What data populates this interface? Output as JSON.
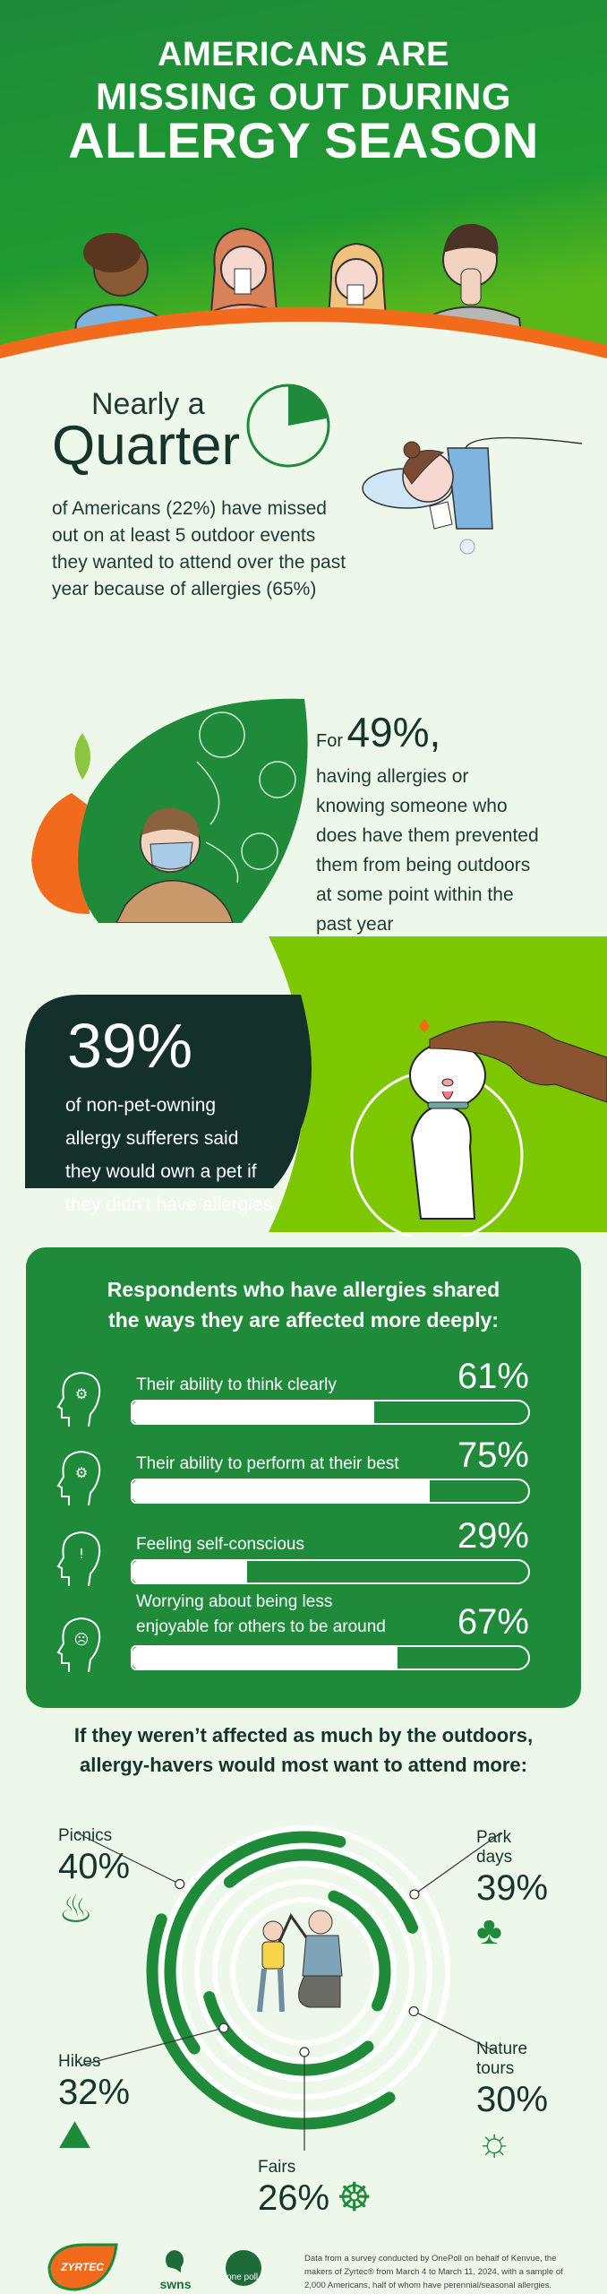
{
  "header": {
    "title_lines": [
      "AMERICANS ARE",
      "MISSING OUT DURING",
      "ALLERGY SEASON"
    ],
    "colors": {
      "green": "#1e8a3a",
      "orange": "#f26a1b",
      "lime": "#7cc700",
      "dark": "#14302a",
      "background": "#eef8ea"
    }
  },
  "quarter": {
    "intro": "Nearly a",
    "headline": "Quarter",
    "pie_fraction": 0.22,
    "body_lines": [
      "of Americans (22%) have missed",
      "out on at least 5 outdoor events",
      "they wanted to attend over the past",
      "year because of allergies (65%)"
    ]
  },
  "outdoors": {
    "prefix": "For",
    "stat": "49%,",
    "body_lines": [
      "having allergies or",
      "knowing someone who",
      "does have them prevented",
      "them from being outdoors",
      "at some point within the",
      "past year"
    ]
  },
  "pets": {
    "stat": "39%",
    "body_lines": [
      "of non-pet-owning",
      "allergy sufferers said",
      "they would own a pet if",
      "they didn’t have allergies"
    ]
  },
  "effects": {
    "title_lines": [
      "Respondents who have allergies shared",
      "the ways they are affected more deeply:"
    ],
    "items": [
      {
        "label_lines": [
          "Their ability to think clearly"
        ],
        "value": 61,
        "value_label": "61%",
        "icon": "head-brain-icon"
      },
      {
        "label_lines": [
          "Their ability to perform at their best"
        ],
        "value": 75,
        "value_label": "75%",
        "icon": "head-gear-icon"
      },
      {
        "label_lines": [
          "Feeling self-conscious"
        ],
        "value": 29,
        "value_label": "29%",
        "icon": "head-exclamation-icon"
      },
      {
        "label_lines": [
          "Worrying about being less",
          "enjoyable for others to be around"
        ],
        "value": 67,
        "value_label": "67%",
        "icon": "head-sad-face-icon"
      }
    ]
  },
  "activities": {
    "title_lines": [
      "If they weren’t affected as much by the outdoors,",
      "allergy-havers would most want to attend more:"
    ],
    "items": [
      {
        "label_lines": [
          "Picnics"
        ],
        "value": 40,
        "value_label": "40%",
        "icon": "grill-icon"
      },
      {
        "label_lines": [
          "Park",
          "days"
        ],
        "value": 39,
        "value_label": "39%",
        "icon": "park-bench-tree-icon"
      },
      {
        "label_lines": [
          "Nature",
          "tours"
        ],
        "value": 30,
        "value_label": "30%",
        "icon": "nature-trail-icon"
      },
      {
        "label_lines": [
          "Hikes"
        ],
        "value": 32,
        "value_label": "32%",
        "icon": "hiker-icon"
      },
      {
        "label_lines": [
          "Fairs"
        ],
        "value": 26,
        "value_label": "26%",
        "icon": "ferris-wheel-icon"
      }
    ]
  },
  "footer": {
    "logos": [
      "ZYRTEC",
      "swns",
      "one poll."
    ],
    "disclaimer": "Data from a survey conducted by OnePoll on behalf of Kenvue, the makers of Zyrtec® from March 4 to March 11, 2024, with a sample of 2,000 Americans, half of whom have perennial/seasonal allergies."
  }
}
